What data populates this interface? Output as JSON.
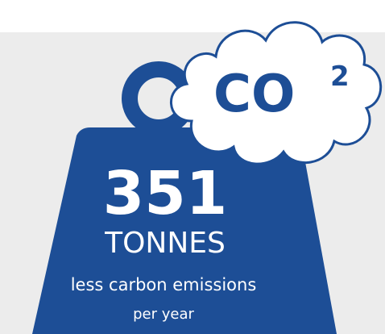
{
  "weight": {
    "number": "351",
    "unit": "TONNES",
    "line1": "less carbon emissions",
    "line2": "per year"
  },
  "cloud": {
    "text": "CO",
    "superscript": "2"
  }
}
